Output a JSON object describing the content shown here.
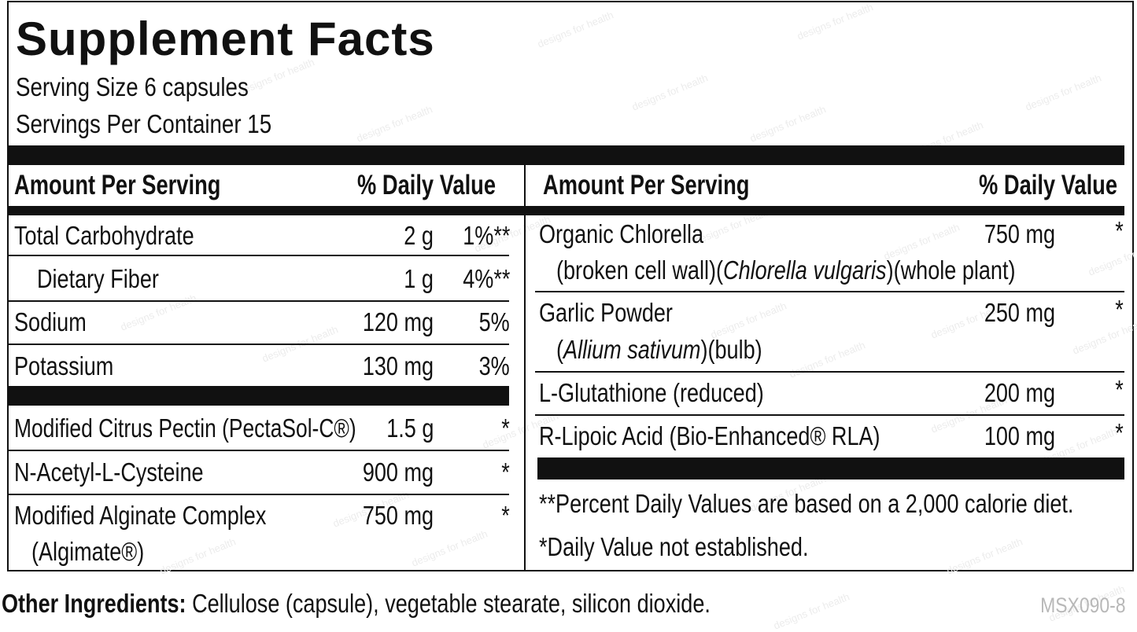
{
  "title": "Supplement Facts",
  "serving_size": "Serving Size 6 capsules",
  "servings_per_container": "Servings Per Container 15",
  "header": {
    "amount": "Amount Per Serving",
    "daily_value": "% Daily Value"
  },
  "left_rows": [
    {
      "name": "Total Carbohydrate",
      "amount": "2 g",
      "dv": "1%**"
    },
    {
      "name": "Dietary Fiber",
      "amount": "1 g",
      "dv": "4%**"
    },
    {
      "name": "Sodium",
      "amount": "120 mg",
      "dv": "5%"
    },
    {
      "name": "Potassium",
      "amount": "130 mg",
      "dv": "3%"
    },
    {
      "name": "Modified Citrus Pectin (PectaSol-C®)",
      "amount": "1.5 g",
      "dv": "*"
    },
    {
      "name": "N-Acetyl-L-Cysteine",
      "amount": "900 mg",
      "dv": "*"
    },
    {
      "name": "Modified Alginate Complex",
      "sub": "(Algimate®)",
      "amount": "750 mg",
      "dv": "*"
    }
  ],
  "right_rows": [
    {
      "name": "Organic Chlorella",
      "sub_pre": "(broken cell wall)(",
      "sub_italic": "Chlorella vulgaris",
      "sub_post": ")(whole plant)",
      "amount": "750 mg",
      "dv": "*"
    },
    {
      "name": "Garlic Powder",
      "sub_pre": "(",
      "sub_italic": "Allium sativum",
      "sub_post": ")(bulb)",
      "amount": "250 mg",
      "dv": "*"
    },
    {
      "name": "L-Glutathione (reduced)",
      "amount": "200 mg",
      "dv": "*"
    },
    {
      "name": "R-Lipoic Acid (Bio-Enhanced® RLA)",
      "amount": "100 mg",
      "dv": "*"
    }
  ],
  "footnotes": [
    "**Percent Daily Values are based on a 2,000 calorie diet.",
    "*Daily Value not established."
  ],
  "other_ingredients": {
    "label": "Other Ingredients:",
    "text": " Cellulose (capsule), vegetable stearate, silicon dioxide."
  },
  "product_code": "MSX090-8",
  "watermark_text": "designs for health"
}
